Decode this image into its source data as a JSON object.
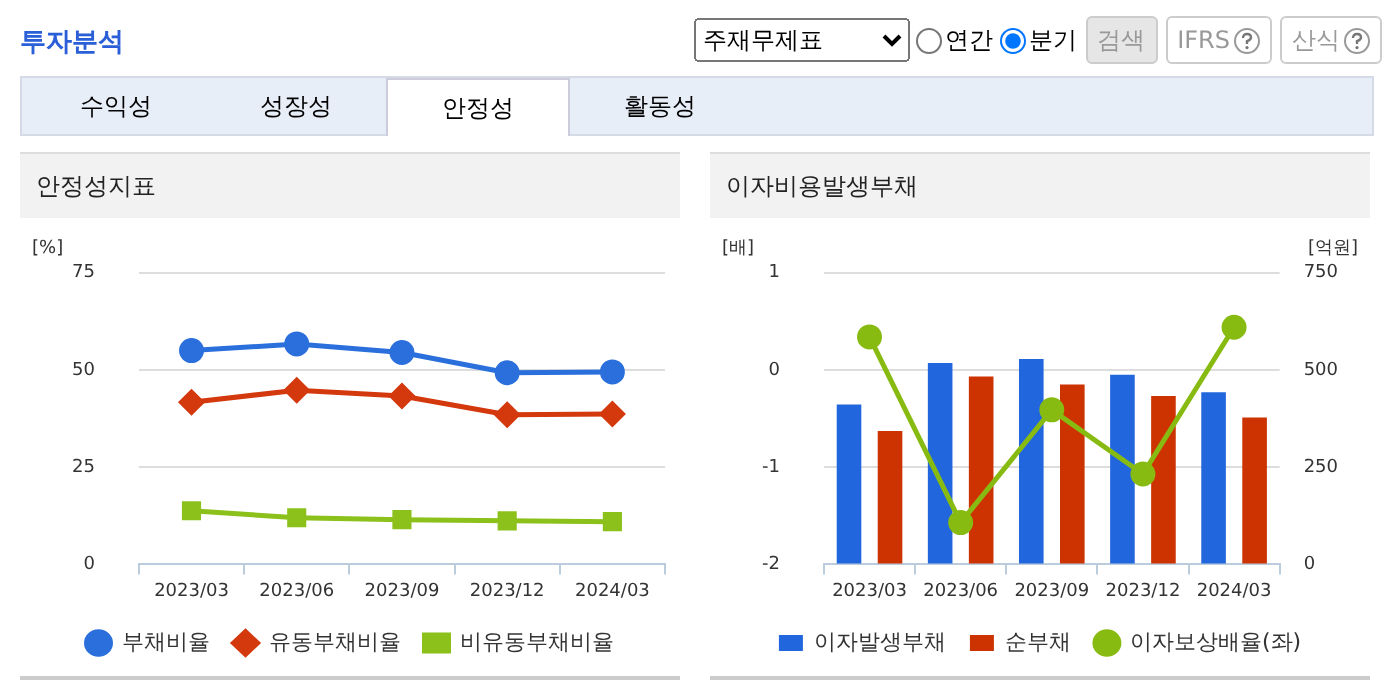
{
  "chart_data": [
    {
      "type": "other",
      "title": "투자분석",
      "annotations": [
        "주재무제표",
        "연간",
        "분기",
        "검색",
        "IFRS",
        "산식",
        "수익성",
        "성장성",
        "안정성",
        "활동성"
      ]
    },
    {
      "type": "line",
      "title": "안정성지표",
      "ylabel": "[%]",
      "categories": [
        "2023/03",
        "2023/06",
        "2023/09",
        "2023/12",
        "2024/03"
      ],
      "ylim": [
        0,
        75
      ],
      "yticks": [
        0,
        25,
        50,
        75
      ],
      "grid": "y",
      "legend": "bottom",
      "series": [
        {
          "name": "부채비율",
          "color": "#2a6fdb",
          "marker": "circle",
          "values": [
            55,
            56.7,
            54.5,
            49.3,
            49.5
          ]
        },
        {
          "name": "유동부채비율",
          "color": "#d4380d",
          "marker": "diamond",
          "values": [
            41.7,
            44.8,
            43.3,
            38.5,
            38.7
          ]
        },
        {
          "name": "비유동부채비율",
          "color": "#8cc11b",
          "marker": "square",
          "values": [
            13.8,
            12,
            11.5,
            11.2,
            11
          ]
        }
      ]
    },
    {
      "type": "bar",
      "title": "이자비용발생부채",
      "ylabel": "[배]",
      "y2label": "[억원]",
      "categories": [
        "2023/03",
        "2023/06",
        "2023/09",
        "2023/12",
        "2024/03"
      ],
      "ylim": [
        -2,
        1
      ],
      "yticks": [
        -2,
        -1,
        0,
        1
      ],
      "y2lim": [
        0,
        750
      ],
      "y2ticks": [
        0,
        250,
        500,
        750
      ],
      "grid": "y",
      "legend": "bottom",
      "series": [
        {
          "name": "이자발생부채",
          "color": "#2266dd",
          "axis": "y2",
          "values": [
            411,
            518,
            528,
            488,
            443
          ]
        },
        {
          "name": "순부채",
          "color": "#cc3300",
          "axis": "y2",
          "values": [
            343,
            483,
            463,
            433,
            378
          ]
        },
        {
          "name": "이자보상배율(좌)",
          "type": "line",
          "color": "#88bb11",
          "marker": "circle",
          "axis": "y",
          "values": [
            0.34,
            -1.57,
            -0.41,
            -1.07,
            0.44
          ]
        }
      ]
    }
  ]
}
